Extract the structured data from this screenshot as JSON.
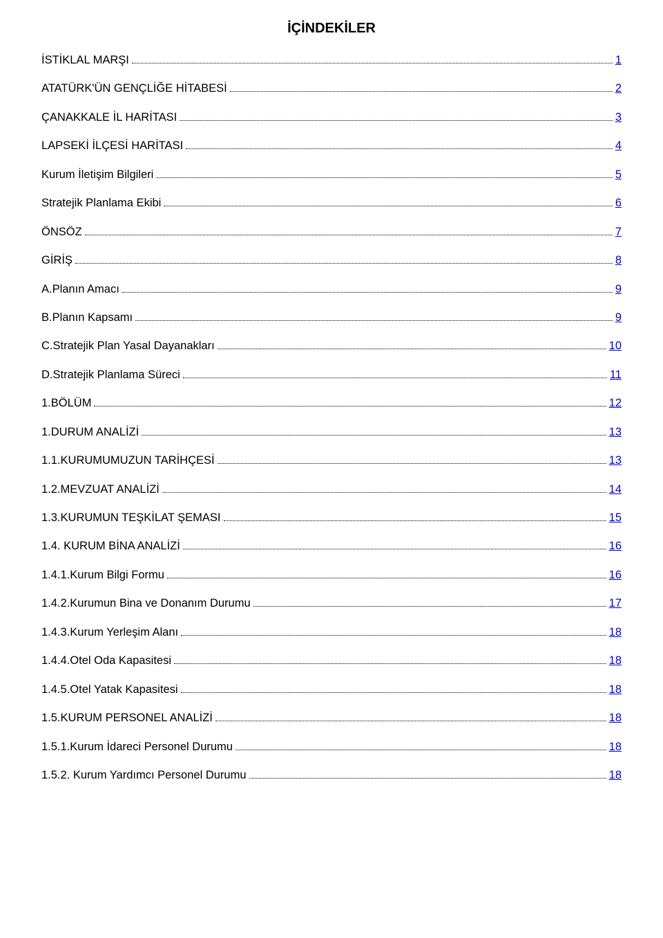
{
  "title": "İÇİNDEKİLER",
  "link_color": "#0000cc",
  "text_color": "#000000",
  "entries": [
    {
      "label": "İSTİKLAL MARŞI",
      "page": "1"
    },
    {
      "label": "ATATÜRK'ÜN GENÇLİĞE HİTABESİ",
      "page": "2"
    },
    {
      "label": "ÇANAKKALE İL HARİTASI",
      "page": "3"
    },
    {
      "label": "LAPSEKİ İLÇESİ HARİTASI",
      "page": "4"
    },
    {
      "label": "Kurum İletişim Bilgileri",
      "page": "5"
    },
    {
      "label": "Stratejik Planlama Ekibi",
      "page": "6"
    },
    {
      "label": "ÖNSÖZ",
      "page": "7"
    },
    {
      "label": "GİRİŞ",
      "page": "8"
    },
    {
      "label": "A.Planın Amacı",
      "page": "9"
    },
    {
      "label": "B.Planın Kapsamı",
      "page": "9"
    },
    {
      "label": "C.Stratejik Plan Yasal Dayanakları",
      "page": "10"
    },
    {
      "label": "D.Stratejik Planlama Süreci",
      "page": "11"
    },
    {
      "label": "1.BÖLÜM",
      "page": "12"
    },
    {
      "label": "1.DURUM ANALİZİ",
      "page": "13"
    },
    {
      "label": "1.1.KURUMUMUZUN TARİHÇESİ",
      "page": "13"
    },
    {
      "label": "1.2.MEVZUAT ANALİZİ",
      "page": "14"
    },
    {
      "label": "1.3.KURUMUN TEŞKİLAT ŞEMASI",
      "page": "15"
    },
    {
      "label": "1.4. KURUM BİNA ANALİZİ",
      "page": "16"
    },
    {
      "label": "1.4.1.Kurum Bilgi Formu",
      "page": "16"
    },
    {
      "label": "1.4.2.Kurumun Bina ve Donanım Durumu",
      "page": "17"
    },
    {
      "label": "1.4.3.Kurum Yerleşim Alanı",
      "page": "18"
    },
    {
      "label": "1.4.4.Otel Oda Kapasitesi",
      "page": "18"
    },
    {
      "label": "1.4.5.Otel Yatak Kapasitesi",
      "page": "18"
    },
    {
      "label": "1.5.KURUM PERSONEL ANALİZİ",
      "page": "18"
    },
    {
      "label": "1.5.1.Kurum İdareci Personel Durumu",
      "page": "18"
    },
    {
      "label": "1.5.2. Kurum Yardımcı Personel Durumu",
      "page": "18"
    }
  ]
}
